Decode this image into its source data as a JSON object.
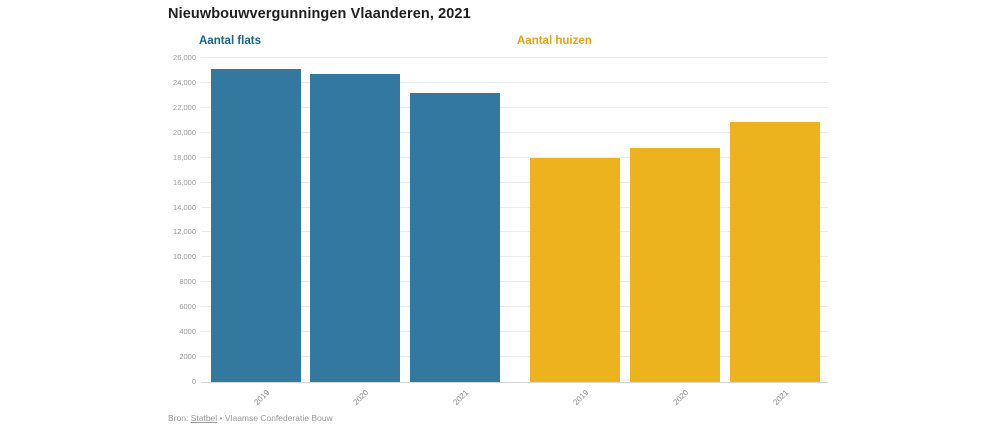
{
  "title": "Nieuwbouwvergunningen Vlaanderen, 2021",
  "panel_labels": [
    {
      "text": "Aantal flats",
      "color": "#17648A"
    },
    {
      "text": "Aantal huizen",
      "color": "#E2A414"
    }
  ],
  "source": {
    "prefix": "Bron:",
    "link_text": "Statbel",
    "separator": "•",
    "rest": "Vlaamse Confederatie Bouw"
  },
  "chart_data": {
    "type": "bar",
    "title": "Nieuwbouwvergunningen Vlaanderen, 2021",
    "categories": [
      "2019",
      "2020",
      "2021"
    ],
    "series": [
      {
        "name": "Aantal flats",
        "color": "#33789F",
        "values": [
          25100,
          24700,
          23200
        ]
      },
      {
        "name": "Aantal huizen",
        "color": "#EDB31E",
        "values": [
          18000,
          18750,
          20850
        ]
      }
    ],
    "xlabel": "",
    "ylabel": "",
    "ylim": [
      0,
      26000
    ],
    "ytick_step": 2000,
    "ytick_labels": [
      "0",
      "2000",
      "4000",
      "6000",
      "8000",
      "10,000",
      "12,000",
      "14,000",
      "16,000",
      "18,000",
      "20,000",
      "22,000",
      "24,000",
      "26,000"
    ],
    "grid": "horizontal",
    "legend_position": "panel-headers",
    "bar_group_layout": "two side-by-side year groups sharing one y-axis"
  }
}
